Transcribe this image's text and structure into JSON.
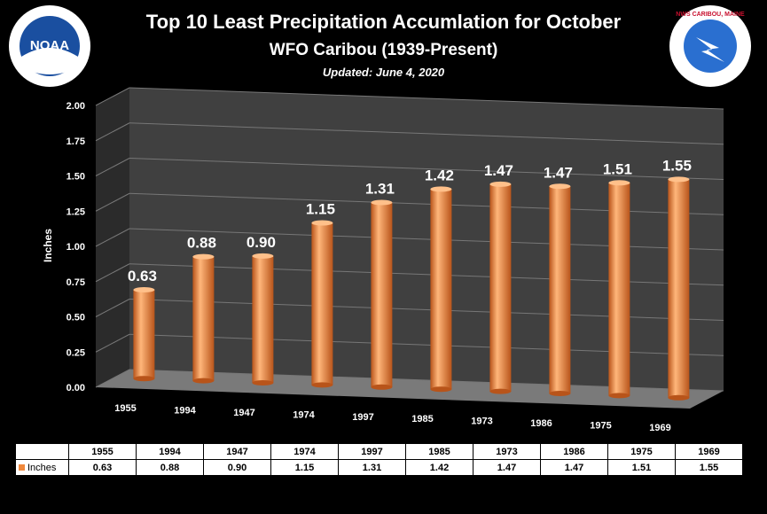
{
  "header": {
    "title": "Top 10 Least Precipitation Accumlation for October",
    "subtitle": "WFO Caribou (1939-Present)",
    "updated": "Updated: June 4, 2020"
  },
  "logos": {
    "noaa_text": "NOAA",
    "nws_text": "NWS CARIBOU, MAINE"
  },
  "colors": {
    "bar": "#f0883c",
    "bar_dark": "#b8541a",
    "background": "#000000",
    "wall": "#404040"
  },
  "chart_data": {
    "type": "bar",
    "title": "Top 10 Least Precipitation Accumlation for October",
    "ylabel": "Inches",
    "ylim": [
      0,
      2
    ],
    "yticks": [
      "0.00",
      "0.25",
      "0.50",
      "0.75",
      "1.00",
      "1.25",
      "1.50",
      "1.75",
      "2.00"
    ],
    "categories": [
      "1955",
      "1994",
      "1947",
      "1974",
      "1997",
      "1985",
      "1973",
      "1986",
      "1975",
      "1969"
    ],
    "series": [
      {
        "name": "Inches",
        "values": [
          0.63,
          0.88,
          0.9,
          1.15,
          1.31,
          1.42,
          1.47,
          1.47,
          1.51,
          1.55
        ]
      }
    ],
    "data_labels": [
      "0.63",
      "0.88",
      "0.90",
      "1.15",
      "1.31",
      "1.42",
      "1.47",
      "1.47",
      "1.51",
      "1.55"
    ]
  },
  "table": {
    "headers": [
      "1955",
      "1994",
      "1947",
      "1974",
      "1997",
      "1985",
      "1973",
      "1986",
      "1975",
      "1969"
    ],
    "row_label": "Inches",
    "values": [
      "0.63",
      "0.88",
      "0.90",
      "1.15",
      "1.31",
      "1.42",
      "1.47",
      "1.47",
      "1.51",
      "1.55"
    ]
  }
}
